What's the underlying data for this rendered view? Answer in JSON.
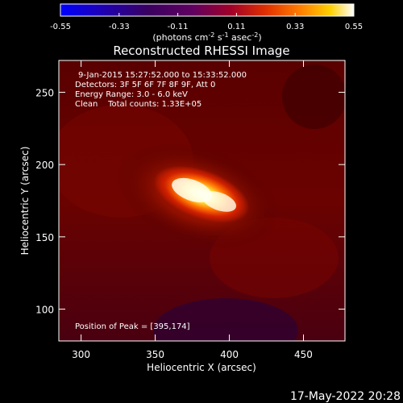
{
  "chart_data": {
    "type": "heatmap",
    "title": "Reconstructed RHESSI Image",
    "xlabel": "Heliocentric X (arcsec)",
    "ylabel": "Heliocentric Y (arcsec)",
    "xlim": [
      285,
      478
    ],
    "ylim": [
      78,
      272
    ],
    "xticks": [
      300,
      350,
      400,
      450
    ],
    "yticks": [
      100,
      150,
      200,
      250
    ],
    "colorbar": {
      "range": [
        -0.55,
        0.55
      ],
      "ticks": [
        "-0.55",
        "-0.33",
        "-0.11",
        "0.11",
        "0.33",
        "0.55"
      ],
      "label_main": "(photons cm",
      "label_exp1": "-2",
      "label_mid": " s",
      "label_exp2": "-1",
      "label_mid2": " asec",
      "label_exp3": "-2",
      "label_end": ")",
      "colors": [
        "#0000ff",
        "#200060",
        "#500070",
        "#a00020",
        "#e02000",
        "#ff7000",
        "#ffd000",
        "#ffffff"
      ]
    },
    "annotations": {
      "time": "9-Jan-2015 15:27:52.000 to 15:33:52.000",
      "detectors": "Detectors: 3F 5F 6F 7F 8F 9F, Att 0",
      "energy": "Energy Range: 3.0 - 6.0 keV",
      "clean": "Clean    Total counts: 1.33E+05",
      "peak": "Position of Peak = [395,174]"
    },
    "peak_position": [
      395,
      174
    ],
    "source": {
      "center": [
        380,
        176
      ],
      "peak_value": 0.55,
      "background": 0.05
    }
  },
  "footer": {
    "date": "17-May-2022 20:28"
  }
}
